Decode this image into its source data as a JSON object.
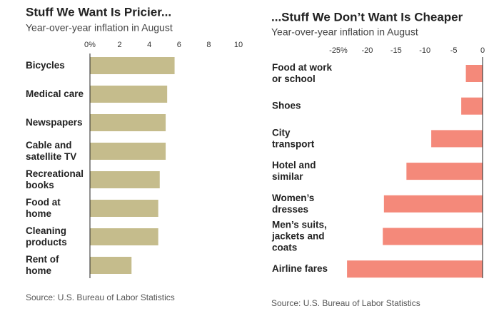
{
  "chart_data": [
    {
      "type": "hbar",
      "title": "Stuff We Want Is Pricier...",
      "subtitle": "Year-over-year inflation in August",
      "categories": [
        "Bicycles",
        "Medical care",
        "Newspapers",
        "Cable and\nsatellite TV",
        "Recreational\nbooks",
        "Food at\nhome",
        "Cleaning\nproducts",
        "Rent of\nhome"
      ],
      "values": [
        5.7,
        5.2,
        5.1,
        5.1,
        4.7,
        4.6,
        4.6,
        2.8
      ],
      "color": "#c5bc8c",
      "xlim": [
        0,
        10
      ],
      "xticks": [
        {
          "value": 0,
          "label": "0%"
        },
        2,
        4,
        6,
        8,
        10
      ],
      "source": "Source: U.S. Bureau of Labor Statistics"
    },
    {
      "type": "hbar",
      "title": "...Stuff We Don’t Want Is Cheaper",
      "subtitle": "Year-over-year inflation in August",
      "categories": [
        "Food at work\nor school",
        "Shoes",
        "City\ntransport",
        "Hotel and\nsimilar",
        "Women’s\ndresses",
        "Men’s suits,\njackets and\ncoats",
        "Airline fares"
      ],
      "values": [
        -2.9,
        -3.7,
        -8.9,
        -13.2,
        -17.1,
        -17.3,
        -23.5
      ],
      "color": "#f4897a",
      "xlim": [
        -25,
        0
      ],
      "xticks": [
        {
          "value": -25,
          "label": "-25%"
        },
        -20,
        -15,
        -10,
        -5,
        0
      ],
      "source": "Source: U.S. Bureau of Labor Statistics"
    }
  ]
}
